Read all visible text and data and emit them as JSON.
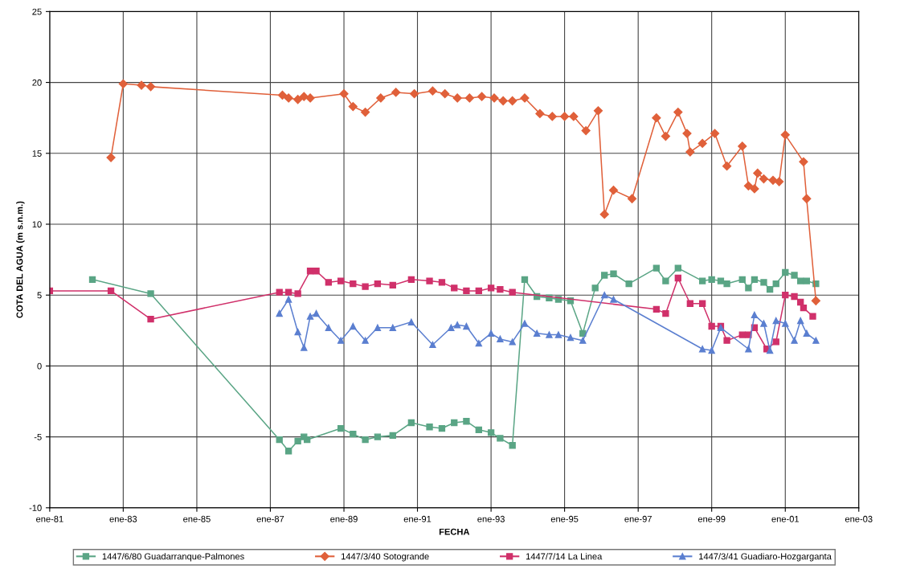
{
  "chart_data": {
    "type": "line",
    "xlabel": "FECHA",
    "ylabel": "COTA DEL AGUA (m s.n.m.)",
    "xlim": [
      "1981-01",
      "2003-01"
    ],
    "xticks": [
      {
        "value": "1981-01",
        "label": "ene-81"
      },
      {
        "value": "1983-01",
        "label": "ene-83"
      },
      {
        "value": "1985-01",
        "label": "ene-85"
      },
      {
        "value": "1987-01",
        "label": "ene-87"
      },
      {
        "value": "1989-01",
        "label": "ene-89"
      },
      {
        "value": "1991-01",
        "label": "ene-91"
      },
      {
        "value": "1993-01",
        "label": "ene-93"
      },
      {
        "value": "1995-01",
        "label": "ene-95"
      },
      {
        "value": "1997-01",
        "label": "ene-97"
      },
      {
        "value": "1999-01",
        "label": "ene-99"
      },
      {
        "value": "2001-01",
        "label": "ene-01"
      },
      {
        "value": "2003-01",
        "label": "ene-03"
      }
    ],
    "ylim": [
      -10,
      25
    ],
    "yticks": [
      -10,
      -5,
      0,
      5,
      10,
      15,
      20,
      25
    ],
    "grid": true,
    "legend": "bottom",
    "series": [
      {
        "name": "1447/6/80 Guadarranque-Palmones",
        "color": "#5aa585",
        "marker": "square",
        "x": [
          "1982-03",
          "1983-10",
          "1987-04",
          "1987-07",
          "1987-10",
          "1987-12",
          "1988-01",
          "1988-12",
          "1989-04",
          "1989-08",
          "1989-12",
          "1990-05",
          "1990-11",
          "1991-05",
          "1991-09",
          "1992-01",
          "1992-05",
          "1992-09",
          "1993-01",
          "1993-04",
          "1993-08",
          "1993-12",
          "1994-04",
          "1994-08",
          "1994-11",
          "1995-03",
          "1995-07",
          "1995-11",
          "1996-02",
          "1996-05",
          "1996-10",
          "1997-07",
          "1997-10",
          "1998-02",
          "1998-10",
          "1999-01",
          "1999-04",
          "1999-06",
          "1999-11",
          "2000-01",
          "2000-03",
          "2000-06",
          "2000-08",
          "2000-10",
          "2001-01",
          "2001-04",
          "2001-06",
          "2001-08",
          "2001-11"
        ],
        "values": [
          6.1,
          5.1,
          -5.2,
          -6.0,
          -5.3,
          -5.0,
          -5.2,
          -4.4,
          -4.8,
          -5.2,
          -5.0,
          -4.9,
          -4.0,
          -4.3,
          -4.4,
          -4.0,
          -3.9,
          -4.5,
          -4.7,
          -5.1,
          -5.6,
          6.1,
          4.9,
          4.8,
          4.7,
          4.6,
          2.3,
          5.5,
          6.4,
          6.5,
          5.8,
          6.9,
          6.0,
          6.9,
          6.0,
          6.1,
          6.0,
          5.8,
          6.1,
          5.5,
          6.1,
          5.9,
          5.4,
          5.8,
          6.6,
          6.4,
          6.0,
          6.0,
          5.8
        ]
      },
      {
        "name": "1447/3/40 Sotogrande",
        "color": "#e0603a",
        "marker": "diamond",
        "x": [
          "1982-09",
          "1983-01",
          "1983-07",
          "1983-10",
          "1987-05",
          "1987-07",
          "1987-10",
          "1987-12",
          "1988-02",
          "1989-01",
          "1989-04",
          "1989-08",
          "1990-01",
          "1990-06",
          "1990-12",
          "1991-06",
          "1991-10",
          "1992-02",
          "1992-06",
          "1992-10",
          "1993-02",
          "1993-05",
          "1993-08",
          "1993-12",
          "1994-05",
          "1994-09",
          "1995-01",
          "1995-04",
          "1995-08",
          "1995-12",
          "1996-02",
          "1996-05",
          "1996-11",
          "1997-07",
          "1997-10",
          "1998-02",
          "1998-05",
          "1998-06",
          "1998-10",
          "1999-02",
          "1999-06",
          "1999-11",
          "2000-01",
          "2000-03",
          "2000-04",
          "2000-06",
          "2000-09",
          "2000-11",
          "2001-01",
          "2001-07",
          "2001-08",
          "2001-11"
        ],
        "values": [
          14.7,
          19.9,
          19.8,
          19.7,
          19.1,
          18.9,
          18.8,
          19.0,
          18.9,
          19.2,
          18.3,
          17.9,
          18.9,
          19.3,
          19.2,
          19.4,
          19.2,
          18.9,
          18.9,
          19.0,
          18.9,
          18.7,
          18.7,
          18.9,
          17.8,
          17.6,
          17.6,
          17.6,
          16.6,
          18.0,
          10.7,
          12.4,
          11.8,
          17.5,
          16.2,
          17.9,
          16.4,
          15.1,
          15.7,
          16.4,
          14.1,
          15.5,
          12.7,
          12.5,
          13.6,
          13.2,
          13.1,
          13.0,
          16.3,
          14.4,
          11.8,
          4.6
        ]
      },
      {
        "name": "1447/7/14 La Linea",
        "color": "#d0306a",
        "marker": "square",
        "x": [
          "1981-01",
          "1982-09",
          "1983-10",
          "1987-04",
          "1987-07",
          "1987-10",
          "1988-02",
          "1988-04",
          "1988-08",
          "1988-12",
          "1989-04",
          "1989-08",
          "1989-12",
          "1990-05",
          "1990-11",
          "1991-05",
          "1991-09",
          "1992-01",
          "1992-05",
          "1992-09",
          "1993-01",
          "1993-04",
          "1993-08",
          "1997-07",
          "1997-10",
          "1998-02",
          "1998-06",
          "1998-10",
          "1999-01",
          "1999-04",
          "1999-06",
          "1999-11",
          "2000-01",
          "2000-03",
          "2000-07",
          "2000-10",
          "2001-01",
          "2001-04",
          "2001-06",
          "2001-07",
          "2001-10"
        ],
        "values": [
          5.3,
          5.3,
          3.3,
          5.2,
          5.2,
          5.1,
          6.7,
          6.7,
          5.9,
          6.0,
          5.8,
          5.6,
          5.8,
          5.7,
          6.1,
          6.0,
          5.9,
          5.5,
          5.3,
          5.3,
          5.5,
          5.4,
          5.2,
          4.0,
          3.7,
          6.2,
          4.4,
          4.4,
          2.8,
          2.8,
          1.8,
          2.2,
          2.2,
          2.7,
          1.2,
          1.7,
          5.0,
          4.9,
          4.5,
          4.1,
          3.5
        ]
      },
      {
        "name": "1447/3/41 Guadiaro-Hozgarganta",
        "color": "#5b7fd0",
        "marker": "triangle",
        "x": [
          "1987-04",
          "1987-07",
          "1987-10",
          "1987-12",
          "1988-02",
          "1988-04",
          "1988-08",
          "1988-12",
          "1989-04",
          "1989-08",
          "1989-12",
          "1990-05",
          "1990-11",
          "1991-06",
          "1991-12",
          "1992-02",
          "1992-05",
          "1992-09",
          "1993-01",
          "1993-04",
          "1993-08",
          "1993-12",
          "1994-04",
          "1994-08",
          "1994-11",
          "1995-03",
          "1995-07",
          "1996-02",
          "1996-05",
          "1998-10",
          "1999-01",
          "1999-04",
          "2000-01",
          "2000-03",
          "2000-06",
          "2000-08",
          "2000-10",
          "2001-01",
          "2001-04",
          "2001-06",
          "2001-08",
          "2001-11"
        ],
        "values": [
          3.7,
          4.7,
          2.4,
          1.3,
          3.5,
          3.7,
          2.7,
          1.8,
          2.8,
          1.8,
          2.7,
          2.7,
          3.1,
          1.5,
          2.7,
          2.9,
          2.8,
          1.6,
          2.3,
          1.9,
          1.7,
          3.0,
          2.3,
          2.2,
          2.2,
          2.0,
          1.8,
          5.0,
          4.7,
          1.2,
          1.1,
          2.7,
          1.2,
          3.6,
          3.0,
          1.1,
          3.2,
          3.0,
          1.8,
          3.2,
          2.3,
          1.8
        ]
      }
    ]
  }
}
